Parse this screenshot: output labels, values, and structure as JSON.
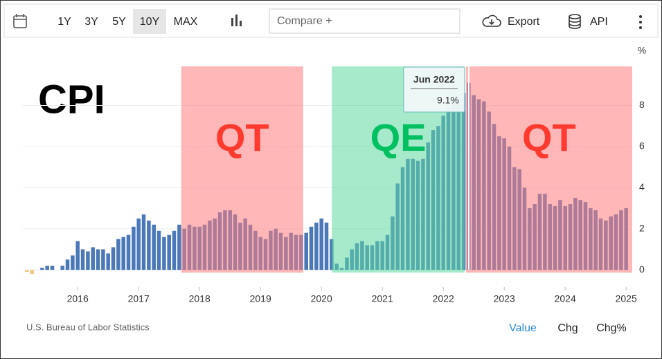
{
  "toolbar": {
    "ranges": [
      "1Y",
      "3Y",
      "5Y",
      "10Y",
      "MAX"
    ],
    "selected_range": "10Y",
    "compare": "Compare +",
    "export": "Export",
    "api": "API"
  },
  "chart_data": {
    "type": "bar",
    "title": "CPI",
    "ylabel": "%",
    "x": [
      2015.167,
      2015.25,
      2015.333,
      2015.417,
      2015.5,
      2015.583,
      2015.667,
      2015.75,
      2015.833,
      2015.917,
      2016,
      2016.083,
      2016.167,
      2016.25,
      2016.333,
      2016.417,
      2016.5,
      2016.583,
      2016.667,
      2016.75,
      2016.833,
      2016.917,
      2017,
      2017.083,
      2017.167,
      2017.25,
      2017.333,
      2017.417,
      2017.5,
      2017.583,
      2017.667,
      2017.75,
      2017.833,
      2017.917,
      2018,
      2018.083,
      2018.167,
      2018.25,
      2018.333,
      2018.417,
      2018.5,
      2018.583,
      2018.667,
      2018.75,
      2018.833,
      2018.917,
      2019,
      2019.083,
      2019.167,
      2019.25,
      2019.333,
      2019.417,
      2019.5,
      2019.583,
      2019.667,
      2019.75,
      2019.833,
      2019.917,
      2020,
      2020.083,
      2020.167,
      2020.25,
      2020.333,
      2020.417,
      2020.5,
      2020.583,
      2020.667,
      2020.75,
      2020.833,
      2020.917,
      2021,
      2021.083,
      2021.167,
      2021.25,
      2021.333,
      2021.417,
      2021.5,
      2021.583,
      2021.667,
      2021.75,
      2021.833,
      2021.917,
      2022,
      2022.083,
      2022.167,
      2022.25,
      2022.333,
      2022.417,
      2022.5,
      2022.583,
      2022.667,
      2022.75,
      2022.833,
      2022.917,
      2023,
      2023.083,
      2023.167,
      2023.25,
      2023.333,
      2023.417,
      2023.5,
      2023.583,
      2023.667,
      2023.75,
      2023.833,
      2023.917,
      2024,
      2024.083,
      2024.167,
      2024.25,
      2024.333,
      2024.417,
      2024.5,
      2024.583,
      2024.667,
      2024.75,
      2024.833,
      2024.917,
      2025
    ],
    "values": [
      -0.1,
      -0.2,
      0.0,
      0.1,
      0.2,
      0.2,
      0.0,
      0.2,
      0.5,
      0.7,
      1.4,
      1.0,
      0.9,
      1.1,
      1.0,
      1.0,
      0.8,
      1.1,
      1.5,
      1.6,
      1.7,
      2.1,
      2.5,
      2.7,
      2.4,
      2.2,
      1.9,
      1.6,
      1.7,
      1.9,
      2.2,
      2.0,
      2.2,
      2.1,
      2.1,
      2.2,
      2.4,
      2.5,
      2.8,
      2.9,
      2.9,
      2.7,
      2.3,
      2.5,
      2.2,
      1.9,
      1.6,
      1.5,
      1.9,
      2.0,
      1.8,
      1.6,
      1.8,
      1.7,
      1.7,
      1.8,
      2.1,
      2.3,
      2.5,
      2.3,
      1.5,
      0.3,
      0.1,
      0.6,
      1.0,
      1.3,
      1.4,
      1.2,
      1.2,
      1.4,
      1.4,
      1.7,
      2.6,
      4.2,
      5.0,
      5.4,
      5.4,
      5.3,
      5.4,
      6.2,
      6.8,
      7.0,
      7.5,
      7.9,
      8.5,
      8.3,
      8.6,
      9.1,
      8.5,
      8.3,
      8.2,
      7.7,
      7.1,
      6.5,
      6.4,
      6.0,
      5.0,
      4.9,
      4.0,
      3.0,
      3.2,
      3.7,
      3.7,
      3.2,
      3.1,
      3.4,
      3.1,
      3.2,
      3.5,
      3.4,
      3.3,
      3.0,
      2.9,
      2.5,
      2.4,
      2.6,
      2.7,
      2.9,
      3.0
    ],
    "color": "#4a78b8",
    "negative_color": "#f0c987",
    "xlim": [
      2015.1,
      2025.1
    ],
    "xticks": [
      2016,
      2017,
      2018,
      2019,
      2020,
      2021,
      2022,
      2023,
      2024,
      2025
    ],
    "ylim": [
      -0.5,
      9.9
    ],
    "yticks": [
      0,
      2,
      4,
      6,
      8
    ],
    "grid": true,
    "regions": [
      {
        "label": "QT",
        "start": 2017.7,
        "end": 2019.7,
        "color": "#ff7b7b",
        "label_color": "#ff3b30"
      },
      {
        "label": "QE",
        "start": 2020.17,
        "end": 2022.35,
        "color": "#5fd8a0",
        "label_color": "#00c060"
      },
      {
        "label": "QT",
        "start": 2022.37,
        "end": 2025.1,
        "color": "#ff7b7b",
        "label_color": "#ff3b30"
      }
    ],
    "tooltip": {
      "x": 2022.417,
      "label": "Jun 2022",
      "value_label": "9.1%"
    }
  },
  "footer": {
    "source": "U.S. Bureau of Labor Statistics",
    "modes": [
      "Value",
      "Chg",
      "Chg%"
    ],
    "selected_mode": "Value"
  }
}
